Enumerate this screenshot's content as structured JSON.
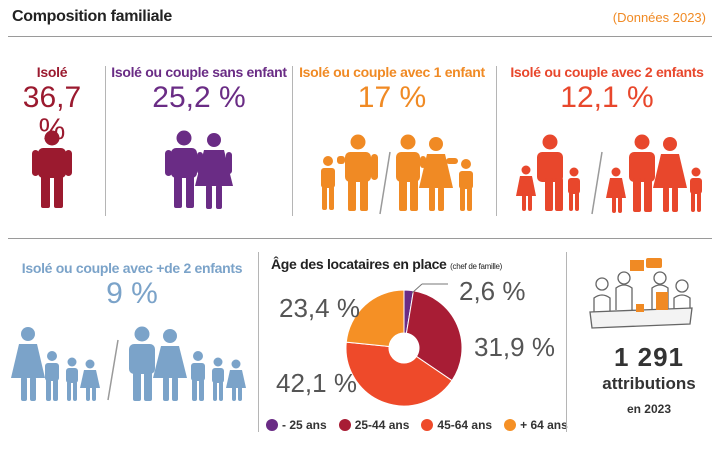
{
  "header": {
    "title": "Composition familiale",
    "note": "(Données 2023)"
  },
  "colors": {
    "isole": "#9b1a2f",
    "sans_enfant": "#6a2c85",
    "un_enfant": "#f08a24",
    "deux_enfants": "#e8472c",
    "plus_deux": "#7ba3c9"
  },
  "composition": [
    {
      "label": "Isolé",
      "value": "36,7 %"
    },
    {
      "label": "Isolé ou couple sans enfant",
      "value": "25,2 %"
    },
    {
      "label": "Isolé ou couple avec 1 enfant",
      "value": "17 %"
    },
    {
      "label": "Isolé ou couple avec 2 enfants",
      "value": "12,1 %"
    },
    {
      "label": "Isolé ou couple avec +de 2 enfants",
      "value": "9 %"
    }
  ],
  "chart_data": {
    "type": "pie",
    "title": "Âge des locataires en place",
    "subtitle": "(chef de famille)",
    "categories": [
      "- 25 ans",
      "25-44 ans",
      "45-64 ans",
      "+ 64 ans"
    ],
    "values": [
      2.6,
      31.9,
      42.1,
      23.4
    ],
    "value_labels": [
      "2,6 %",
      "31,9 %",
      "42,1 %",
      "23,4 %"
    ],
    "colors": [
      "#6a2c85",
      "#a81d35",
      "#ee4a2a",
      "#f59025"
    ],
    "legend_position": "bottom"
  },
  "attributions": {
    "count": "1 291",
    "label": "attributions",
    "year": "en 2023"
  }
}
